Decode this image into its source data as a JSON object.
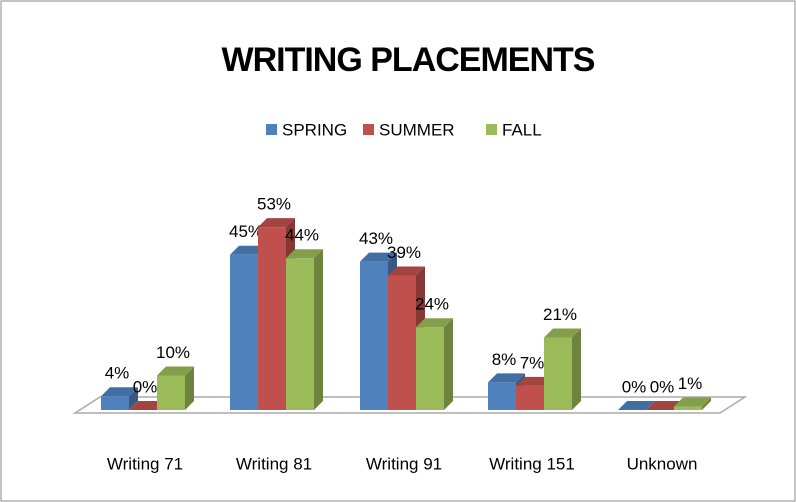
{
  "chart_data": {
    "type": "bar3d",
    "title": "WRITING PLACEMENTS",
    "categories": [
      "Writing 71",
      "Writing 81",
      "Writing 91",
      "Writing 151",
      "Unknown"
    ],
    "series": [
      {
        "name": "SPRING",
        "color": "#4f81bd",
        "values": [
          4,
          45,
          43,
          8,
          0
        ],
        "value_labels": [
          "4%",
          "45%",
          "43%",
          "8%",
          "0%"
        ]
      },
      {
        "name": "SUMMER",
        "color": "#c0504d",
        "values": [
          0,
          53,
          39,
          7,
          0
        ],
        "value_labels": [
          "0%",
          "53%",
          "39%",
          "7%",
          "0%"
        ]
      },
      {
        "name": "FALL",
        "color": "#9bbb59",
        "values": [
          10,
          44,
          24,
          21,
          1
        ],
        "value_labels": [
          "10%",
          "44%",
          "24%",
          "21%",
          "1%"
        ]
      }
    ],
    "legend": "top"
  }
}
